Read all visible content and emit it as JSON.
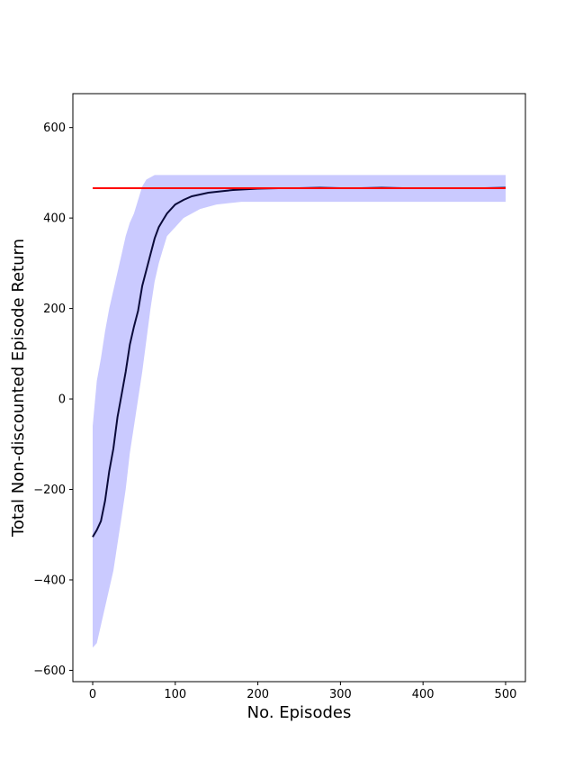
{
  "chart_data": {
    "type": "line",
    "xlabel": "No. Episodes",
    "ylabel": "Total Non-discounted Episode Return",
    "xlim": [
      -24,
      524
    ],
    "ylim": [
      -625,
      675
    ],
    "xticks": [
      0,
      100,
      200,
      300,
      400,
      500
    ],
    "yticks": [
      -600,
      -400,
      -200,
      0,
      200,
      400,
      600
    ],
    "xtick_labels": [
      "0",
      "100",
      "200",
      "300",
      "400",
      "500"
    ],
    "ytick_labels": [
      "−600",
      "−400",
      "−200",
      "0",
      "200",
      "400",
      "600"
    ],
    "grid": false,
    "series": [
      {
        "role": "mean",
        "color": "#0a0a3a",
        "x": [
          0,
          5,
          10,
          15,
          20,
          25,
          30,
          35,
          40,
          45,
          50,
          55,
          60,
          65,
          70,
          75,
          80,
          85,
          90,
          100,
          110,
          120,
          130,
          140,
          150,
          160,
          170,
          180,
          190,
          200,
          225,
          250,
          275,
          300,
          325,
          350,
          375,
          400,
          425,
          450,
          475,
          500
        ],
        "y": [
          -305,
          -290,
          -270,
          -225,
          -160,
          -110,
          -40,
          10,
          60,
          120,
          160,
          195,
          250,
          285,
          320,
          355,
          380,
          395,
          410,
          430,
          440,
          448,
          452,
          456,
          458,
          460,
          462,
          463,
          464,
          465,
          466,
          466,
          467,
          466,
          466,
          467,
          466,
          466,
          466,
          466,
          466,
          467
        ]
      },
      {
        "role": "spread",
        "color": "#6666ff",
        "x": [
          0,
          5,
          10,
          15,
          20,
          25,
          30,
          35,
          40,
          45,
          50,
          55,
          60,
          65,
          70,
          75,
          80,
          85,
          90,
          100,
          110,
          120,
          130,
          140,
          150,
          160,
          170,
          180,
          190,
          200,
          225,
          250,
          275,
          300,
          325,
          350,
          375,
          400,
          425,
          450,
          475,
          500
        ],
        "upper": [
          -60,
          40,
          90,
          150,
          200,
          240,
          280,
          320,
          360,
          390,
          410,
          440,
          470,
          485,
          490,
          495,
          495,
          495,
          495,
          495,
          495,
          495,
          495,
          495,
          495,
          495,
          495,
          495,
          495,
          495,
          495,
          495,
          495,
          495,
          495,
          495,
          495,
          495,
          495,
          495,
          495,
          495
        ],
        "lower": [
          -550,
          -540,
          -500,
          -460,
          -420,
          -380,
          -320,
          -260,
          -200,
          -120,
          -60,
          0,
          60,
          130,
          200,
          260,
          300,
          330,
          360,
          380,
          400,
          410,
          420,
          425,
          430,
          432,
          434,
          436,
          436,
          436,
          436,
          436,
          436,
          436,
          436,
          436,
          436,
          436,
          436,
          436,
          436,
          436
        ]
      },
      {
        "role": "reference",
        "color": "#ff0000",
        "x": [
          0,
          500
        ],
        "y": [
          466,
          466
        ]
      }
    ]
  }
}
